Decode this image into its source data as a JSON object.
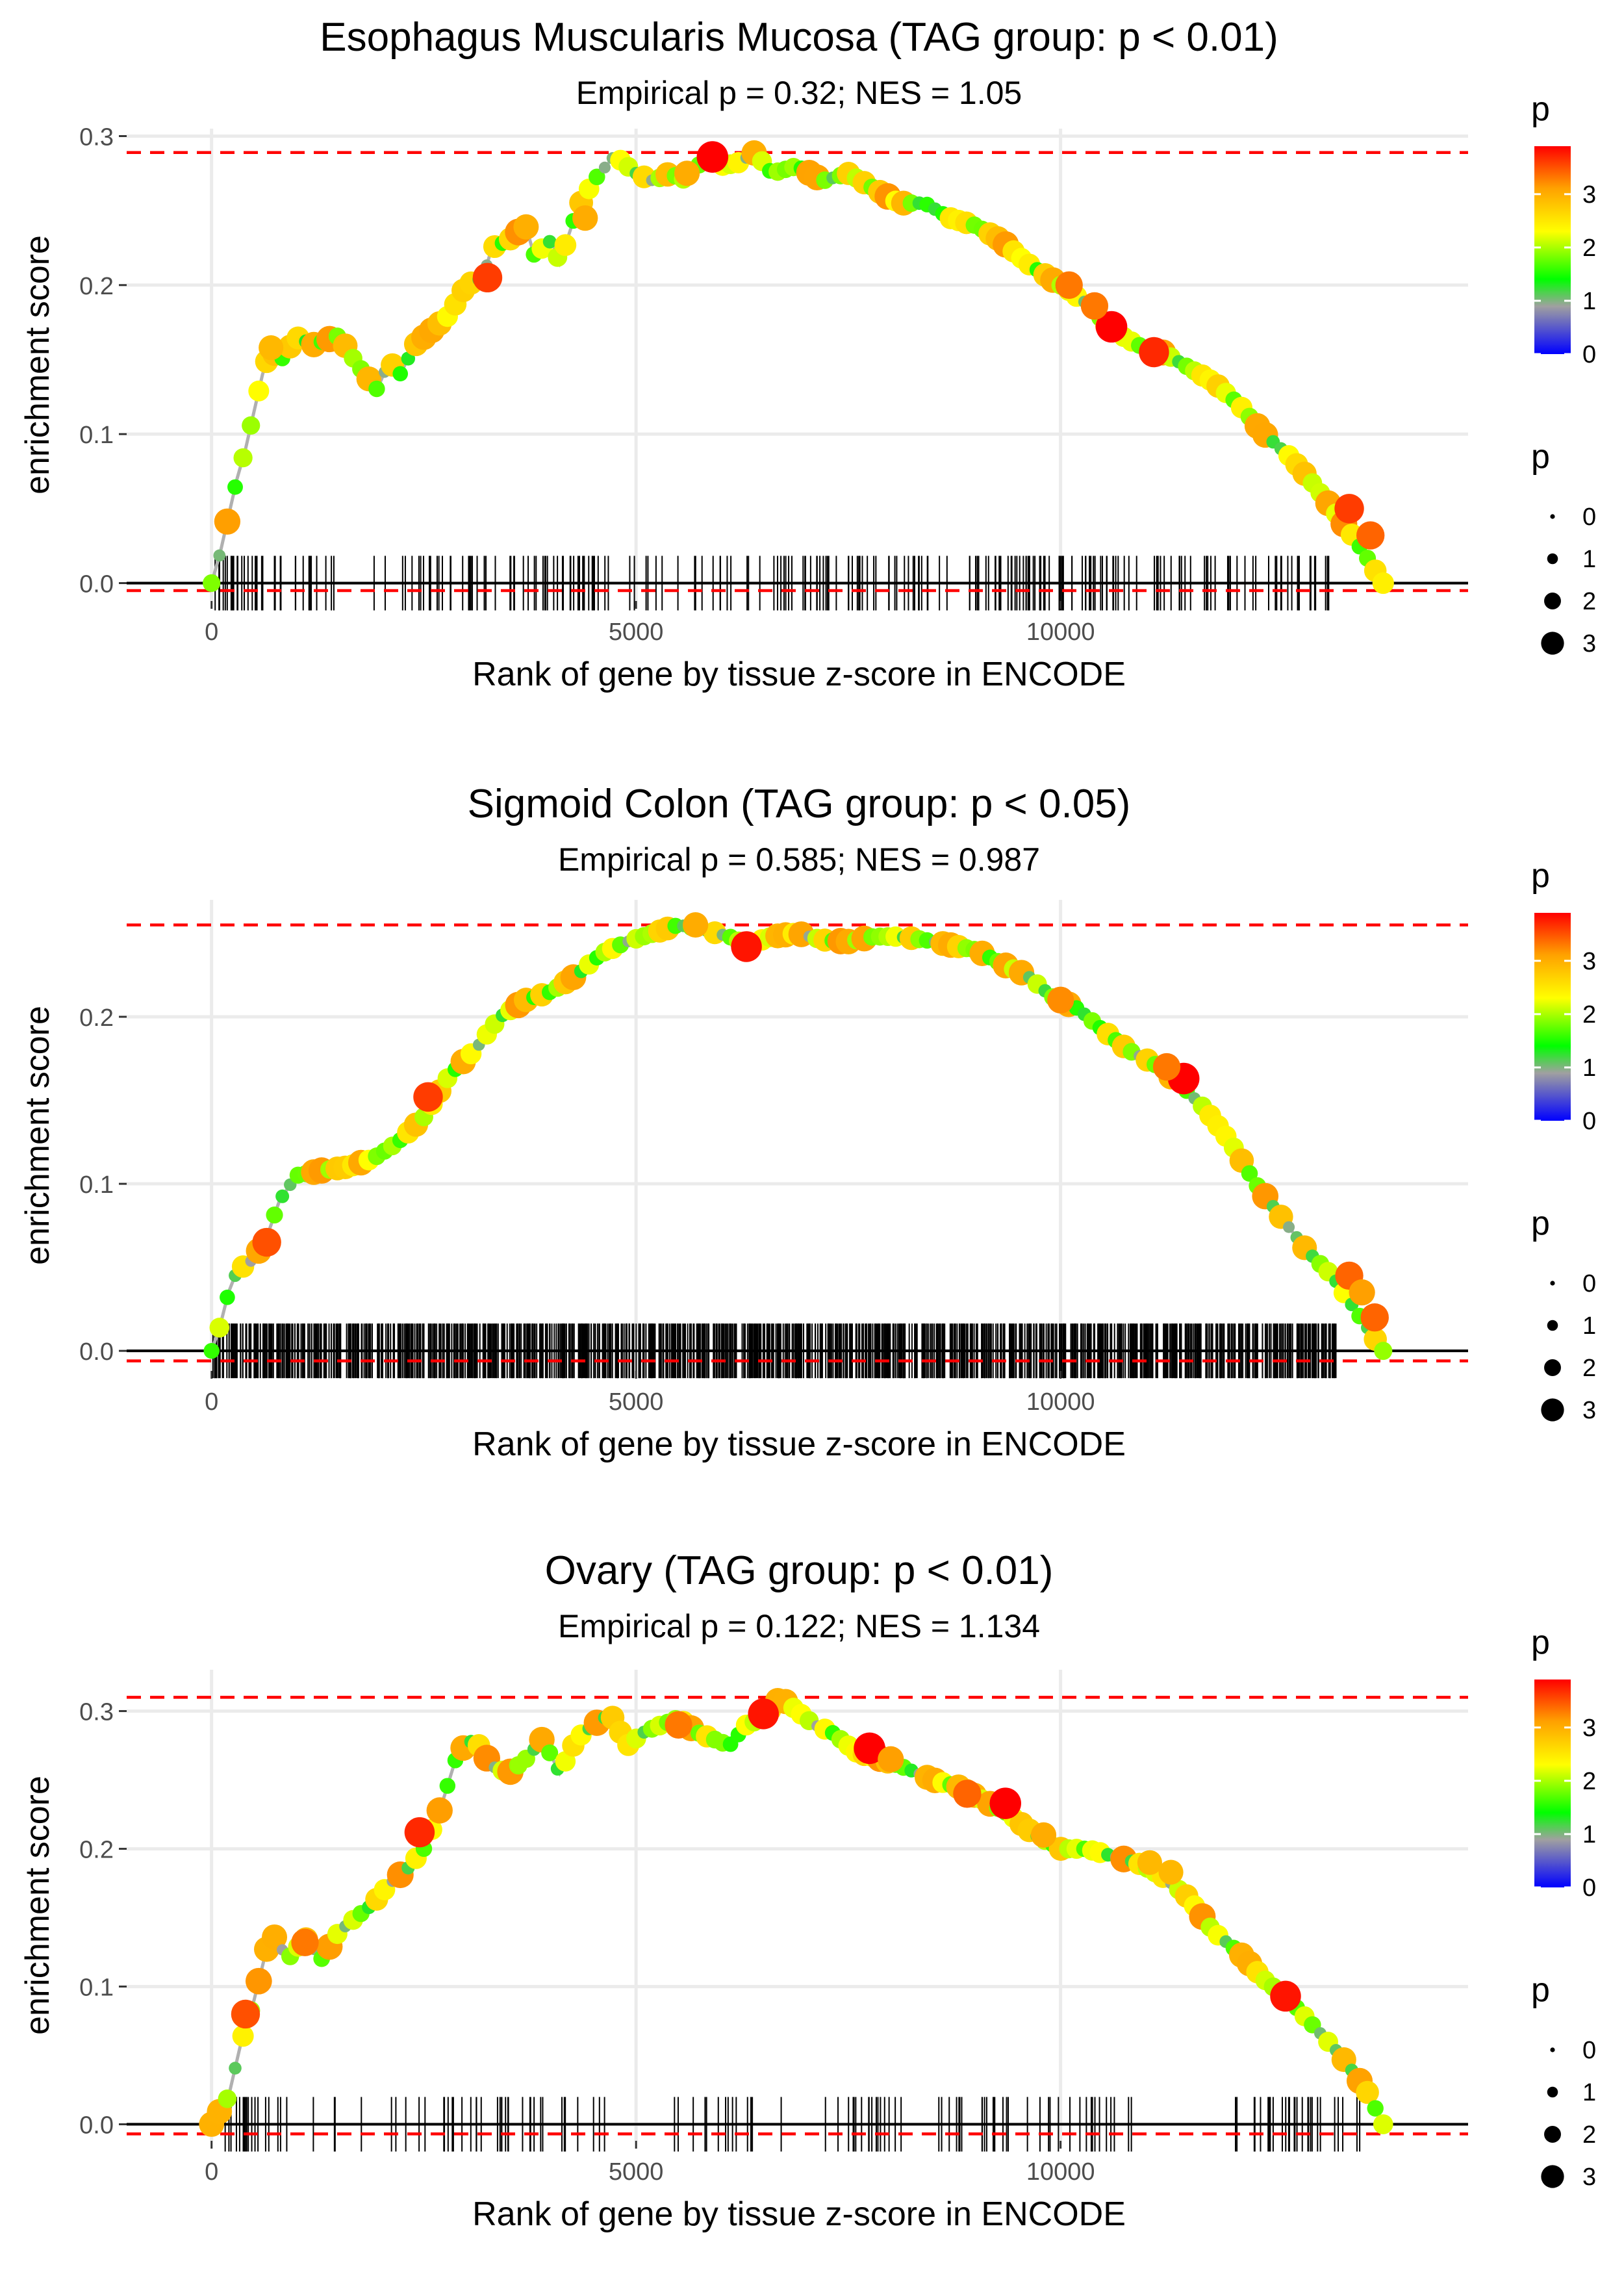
{
  "chart_data": [
    {
      "type": "line",
      "title": "Esophagus Muscularis Mucosa (TAG group: p < 0.01)",
      "subtitle": "Empirical p = 0.32; NES = 1.05",
      "xlabel": "Rank of gene by tissue z-score in ENCODE",
      "ylabel": "enrichment score",
      "xlim": [
        -1000,
        14800
      ],
      "ylim": [
        -0.012,
        0.305
      ],
      "xticks": [
        0,
        5000,
        10000
      ],
      "xtick_labels": [
        "0",
        "5000",
        "10000"
      ],
      "yticks": [
        0.0,
        0.1,
        0.2,
        0.3
      ],
      "ytick_labels": [
        "0.0",
        "0.1",
        "0.2",
        "0.3"
      ],
      "max_es": 0.289,
      "min_es": -0.005,
      "n_hits": 300,
      "hit_density": [
        5,
        7,
        6,
        5,
        2,
        5,
        0,
        3,
        5,
        1,
        2,
        0,
        0,
        1,
        1,
        0,
        2,
        3,
        3,
        3,
        3,
        2,
        5,
        3,
        1,
        4,
        1,
        3,
        5,
        3,
        5,
        5,
        5,
        2,
        0,
        1,
        1,
        3,
        1,
        1,
        0,
        3,
        1,
        2,
        2,
        2,
        1,
        1,
        3,
        3,
        4,
        4,
        4,
        1,
        3,
        5,
        2,
        2,
        2,
        3,
        4,
        3,
        2,
        0,
        2,
        3,
        4,
        4,
        5,
        6,
        4,
        3,
        6,
        2,
        5,
        4,
        6,
        3,
        2,
        0,
        5,
        2,
        3,
        2,
        2,
        3,
        3,
        1,
        2,
        1,
        3,
        3,
        5,
        2,
        2,
        3,
        0,
        0,
        0,
        0
      ],
      "curve": [
        [
          0,
          0.0
        ],
        [
          100,
          0.02
        ],
        [
          200,
          0.045
        ],
        [
          300,
          0.07
        ],
        [
          400,
          0.09
        ],
        [
          500,
          0.115
        ],
        [
          600,
          0.14
        ],
        [
          700,
          0.158
        ],
        [
          800,
          0.148
        ],
        [
          1000,
          0.165
        ],
        [
          1200,
          0.16
        ],
        [
          1500,
          0.166
        ],
        [
          1700,
          0.148
        ],
        [
          1950,
          0.13
        ],
        [
          2100,
          0.15
        ],
        [
          2200,
          0.138
        ],
        [
          2400,
          0.16
        ],
        [
          2600,
          0.17
        ],
        [
          2800,
          0.18
        ],
        [
          3000,
          0.2
        ],
        [
          3200,
          0.205
        ],
        [
          3300,
          0.225
        ],
        [
          3500,
          0.23
        ],
        [
          3700,
          0.24
        ],
        [
          3800,
          0.22
        ],
        [
          4000,
          0.23
        ],
        [
          4100,
          0.215
        ],
        [
          4300,
          0.25
        ],
        [
          4500,
          0.27
        ],
        [
          4750,
          0.287
        ],
        [
          5000,
          0.275
        ],
        [
          5200,
          0.27
        ],
        [
          5400,
          0.275
        ],
        [
          5600,
          0.27
        ],
        [
          5800,
          0.285
        ],
        [
          6000,
          0.28
        ],
        [
          6200,
          0.282
        ],
        [
          6400,
          0.289
        ],
        [
          6600,
          0.275
        ],
        [
          6900,
          0.28
        ],
        [
          7200,
          0.27
        ],
        [
          7500,
          0.275
        ],
        [
          7800,
          0.265
        ],
        [
          8100,
          0.255
        ],
        [
          8400,
          0.255
        ],
        [
          8700,
          0.245
        ],
        [
          9000,
          0.24
        ],
        [
          9300,
          0.23
        ],
        [
          9600,
          0.215
        ],
        [
          10000,
          0.2
        ],
        [
          10300,
          0.188
        ],
        [
          10600,
          0.17
        ],
        [
          10900,
          0.16
        ],
        [
          11200,
          0.155
        ],
        [
          11500,
          0.145
        ],
        [
          11800,
          0.135
        ],
        [
          12100,
          0.12
        ],
        [
          12400,
          0.1
        ],
        [
          12700,
          0.085
        ],
        [
          13000,
          0.065
        ],
        [
          13200,
          0.05
        ],
        [
          13400,
          0.035
        ],
        [
          13600,
          0.018
        ],
        [
          13800,
          0.0
        ]
      ],
      "highlight_points": [
        [
          5900,
          0.286,
          3.9
        ],
        [
          10600,
          0.172,
          3.9
        ],
        [
          11100,
          0.155,
          3.7
        ],
        [
          3250,
          0.205,
          3.6
        ],
        [
          13400,
          0.05,
          3.6
        ],
        [
          13650,
          0.032,
          3.4
        ],
        [
          10100,
          0.2,
          3.3
        ],
        [
          10400,
          0.186,
          3.3
        ],
        [
          4400,
          0.245,
          3.0
        ],
        [
          5600,
          0.275,
          3.0
        ],
        [
          700,
          0.158,
          2.9
        ]
      ],
      "colorbar": {
        "title": "p",
        "ticks": [
          0,
          1,
          2,
          3
        ],
        "tick_labels": [
          "0",
          "1",
          "2",
          "3"
        ],
        "min": 0,
        "max": 3.9,
        "colors": [
          "#0000ff",
          "#00ff00",
          "#ffff00",
          "#ff0000"
        ]
      },
      "size_legend": {
        "title": "p",
        "values": [
          0,
          1,
          2,
          3
        ],
        "labels": [
          "0",
          "1",
          "2",
          "3"
        ]
      }
    },
    {
      "type": "line",
      "title": "Sigmoid Colon (TAG group: p < 0.05)",
      "subtitle": "Empirical p = 0.585; NES = 0.987",
      "xlabel": "Rank of gene by tissue z-score in ENCODE",
      "ylabel": "enrichment score",
      "xlim": [
        -1000,
        14800
      ],
      "ylim": [
        -0.012,
        0.27
      ],
      "xticks": [
        0,
        5000,
        10000
      ],
      "xtick_labels": [
        "0",
        "5000",
        "10000"
      ],
      "yticks": [
        0.0,
        0.1,
        0.2
      ],
      "ytick_labels": [
        "0.0",
        "0.1",
        "0.2"
      ],
      "max_es": 0.255,
      "min_es": -0.006,
      "n_hits": 1100,
      "hit_density": [
        12,
        10,
        11,
        13,
        12,
        10,
        12,
        13,
        10,
        11,
        11,
        10,
        12,
        11,
        10,
        11,
        13,
        12,
        10,
        11,
        12,
        10,
        11,
        13,
        12,
        10,
        11,
        11,
        12,
        10,
        13,
        12,
        11,
        10,
        12,
        11,
        10,
        12,
        13,
        11,
        10,
        11,
        12,
        13,
        10,
        11,
        12,
        10,
        11,
        12,
        13,
        10,
        11,
        12,
        10,
        11,
        12,
        13,
        11,
        10,
        12,
        11,
        10,
        12,
        13,
        11,
        10,
        11,
        12,
        13,
        10,
        11,
        12,
        10,
        11,
        12,
        13,
        10,
        11,
        12,
        10,
        11,
        12,
        13,
        11,
        10,
        12,
        11,
        10,
        12,
        13,
        11,
        10,
        11,
        12,
        13,
        0,
        0,
        0,
        0
      ],
      "curve": [
        [
          0,
          0.0
        ],
        [
          100,
          0.015
        ],
        [
          200,
          0.035
        ],
        [
          300,
          0.048
        ],
        [
          500,
          0.055
        ],
        [
          650,
          0.068
        ],
        [
          800,
          0.09
        ],
        [
          1000,
          0.105
        ],
        [
          1300,
          0.108
        ],
        [
          1600,
          0.11
        ],
        [
          1900,
          0.115
        ],
        [
          2200,
          0.125
        ],
        [
          2500,
          0.14
        ],
        [
          2800,
          0.165
        ],
        [
          3100,
          0.18
        ],
        [
          3400,
          0.2
        ],
        [
          3700,
          0.21
        ],
        [
          4000,
          0.215
        ],
        [
          4300,
          0.225
        ],
        [
          4600,
          0.238
        ],
        [
          4900,
          0.245
        ],
        [
          5200,
          0.25
        ],
        [
          5500,
          0.255
        ],
        [
          5800,
          0.252
        ],
        [
          6100,
          0.248
        ],
        [
          6300,
          0.243
        ],
        [
          6600,
          0.248
        ],
        [
          6900,
          0.25
        ],
        [
          7200,
          0.246
        ],
        [
          7500,
          0.245
        ],
        [
          7800,
          0.248
        ],
        [
          8100,
          0.248
        ],
        [
          8400,
          0.246
        ],
        [
          8700,
          0.243
        ],
        [
          9000,
          0.24
        ],
        [
          9300,
          0.232
        ],
        [
          9600,
          0.225
        ],
        [
          9900,
          0.212
        ],
        [
          10200,
          0.205
        ],
        [
          10500,
          0.192
        ],
        [
          10800,
          0.18
        ],
        [
          11100,
          0.172
        ],
        [
          11400,
          0.16
        ],
        [
          11700,
          0.145
        ],
        [
          12000,
          0.125
        ],
        [
          12300,
          0.1
        ],
        [
          12600,
          0.08
        ],
        [
          12900,
          0.06
        ],
        [
          13200,
          0.045
        ],
        [
          13400,
          0.03
        ],
        [
          13600,
          0.015
        ],
        [
          13800,
          0.0
        ]
      ],
      "highlight_points": [
        [
          11450,
          0.163,
          3.9
        ],
        [
          6300,
          0.242,
          3.8
        ],
        [
          2550,
          0.152,
          3.6
        ],
        [
          650,
          0.065,
          3.5
        ],
        [
          13400,
          0.045,
          3.4
        ],
        [
          13700,
          0.02,
          3.4
        ],
        [
          11250,
          0.17,
          3.3
        ],
        [
          10000,
          0.21,
          3.2
        ],
        [
          13550,
          0.035,
          3.1
        ],
        [
          5700,
          0.255,
          3.0
        ]
      ],
      "colorbar": {
        "title": "p",
        "ticks": [
          0,
          1,
          2,
          3
        ],
        "tick_labels": [
          "0",
          "1",
          "2",
          "3"
        ],
        "min": 0,
        "max": 3.9,
        "colors": [
          "#0000ff",
          "#00ff00",
          "#ffff00",
          "#ff0000"
        ]
      },
      "size_legend": {
        "title": "p",
        "values": [
          0,
          1,
          2,
          3
        ],
        "labels": [
          "0",
          "1",
          "2",
          "3"
        ]
      }
    },
    {
      "type": "line",
      "title": "Ovary (TAG group: p < 0.01)",
      "subtitle": "Empirical p = 0.122; NES = 1.134",
      "xlabel": "Rank of gene by tissue z-score in ENCODE",
      "ylabel": "enrichment score",
      "xlim": [
        -1000,
        14800
      ],
      "ylim": [
        -0.012,
        0.33
      ],
      "xticks": [
        0,
        5000,
        10000
      ],
      "xtick_labels": [
        "0",
        "5000",
        "10000"
      ],
      "yticks": [
        0.0,
        0.1,
        0.2,
        0.3
      ],
      "ytick_labels": [
        "0.0",
        "0.1",
        "0.2",
        "0.3"
      ],
      "max_es": 0.31,
      "min_es": -0.007,
      "n_hits": 300,
      "hit_density": [
        0,
        3,
        6,
        5,
        2,
        2,
        1,
        0,
        1,
        0,
        2,
        0,
        1,
        0,
        0,
        2,
        1,
        1,
        1,
        2,
        4,
        1,
        3,
        1,
        4,
        3,
        1,
        3,
        2,
        1,
        3,
        1,
        1,
        2,
        0,
        0,
        0,
        0,
        0,
        2,
        0,
        1,
        2,
        2,
        3,
        1,
        2,
        0,
        1,
        0,
        0,
        0,
        1,
        1,
        4,
        1,
        5,
        3,
        2,
        0,
        0,
        0,
        3,
        3,
        1,
        3,
        4,
        3,
        0,
        1,
        1,
        2,
        1,
        1,
        2,
        4,
        2,
        1,
        2,
        0,
        0,
        0,
        0,
        0,
        0,
        0,
        0,
        2,
        1,
        3,
        4,
        3,
        4,
        5,
        2,
        1,
        2,
        2,
        0,
        0
      ],
      "curve": [
        [
          0,
          0.0
        ],
        [
          200,
          0.02
        ],
        [
          350,
          0.06
        ],
        [
          500,
          0.09
        ],
        [
          700,
          0.14
        ],
        [
          900,
          0.12
        ],
        [
          1100,
          0.135
        ],
        [
          1300,
          0.12
        ],
        [
          1500,
          0.14
        ],
        [
          1700,
          0.15
        ],
        [
          1900,
          0.16
        ],
        [
          2100,
          0.175
        ],
        [
          2300,
          0.185
        ],
        [
          2500,
          0.2
        ],
        [
          2700,
          0.23
        ],
        [
          2900,
          0.27
        ],
        [
          3100,
          0.28
        ],
        [
          3300,
          0.26
        ],
        [
          3500,
          0.255
        ],
        [
          3700,
          0.265
        ],
        [
          3900,
          0.28
        ],
        [
          4100,
          0.255
        ],
        [
          4300,
          0.28
        ],
        [
          4500,
          0.29
        ],
        [
          4700,
          0.298
        ],
        [
          4900,
          0.275
        ],
        [
          5100,
          0.285
        ],
        [
          5300,
          0.29
        ],
        [
          5500,
          0.295
        ],
        [
          5700,
          0.285
        ],
        [
          5900,
          0.28
        ],
        [
          6100,
          0.275
        ],
        [
          6300,
          0.29
        ],
        [
          6500,
          0.295
        ],
        [
          6700,
          0.31
        ],
        [
          6900,
          0.3
        ],
        [
          7100,
          0.29
        ],
        [
          7300,
          0.285
        ],
        [
          7600,
          0.27
        ],
        [
          7900,
          0.265
        ],
        [
          8200,
          0.258
        ],
        [
          8500,
          0.25
        ],
        [
          8800,
          0.245
        ],
        [
          9100,
          0.235
        ],
        [
          9400,
          0.225
        ],
        [
          9700,
          0.21
        ],
        [
          10000,
          0.2
        ],
        [
          10300,
          0.2
        ],
        [
          10600,
          0.195
        ],
        [
          10900,
          0.19
        ],
        [
          11200,
          0.18
        ],
        [
          11500,
          0.165
        ],
        [
          11800,
          0.14
        ],
        [
          12100,
          0.125
        ],
        [
          12400,
          0.105
        ],
        [
          12700,
          0.09
        ],
        [
          13000,
          0.07
        ],
        [
          13300,
          0.05
        ],
        [
          13600,
          0.025
        ],
        [
          13800,
          0.0
        ]
      ],
      "highlight_points": [
        [
          7750,
          0.273,
          3.9
        ],
        [
          9350,
          0.233,
          3.9
        ],
        [
          12650,
          0.093,
          3.8
        ],
        [
          6500,
          0.298,
          3.8
        ],
        [
          2450,
          0.212,
          3.7
        ],
        [
          400,
          0.08,
          3.5
        ],
        [
          8900,
          0.24,
          3.4
        ],
        [
          1100,
          0.132,
          3.3
        ],
        [
          5500,
          0.29,
          3.3
        ],
        [
          8000,
          0.265,
          3.1
        ],
        [
          9800,
          0.21,
          3.0
        ],
        [
          11050,
          0.19,
          2.9
        ],
        [
          11300,
          0.183,
          2.9
        ]
      ],
      "colorbar": {
        "title": "p",
        "ticks": [
          0,
          1,
          2,
          3
        ],
        "tick_labels": [
          "0",
          "1",
          "2",
          "3"
        ],
        "min": 0,
        "max": 3.9,
        "colors": [
          "#0000ff",
          "#00ff00",
          "#ffff00",
          "#ff0000"
        ]
      },
      "size_legend": {
        "title": "p",
        "values": [
          0,
          1,
          2,
          3
        ],
        "labels": [
          "0",
          "1",
          "2",
          "3"
        ]
      }
    }
  ]
}
